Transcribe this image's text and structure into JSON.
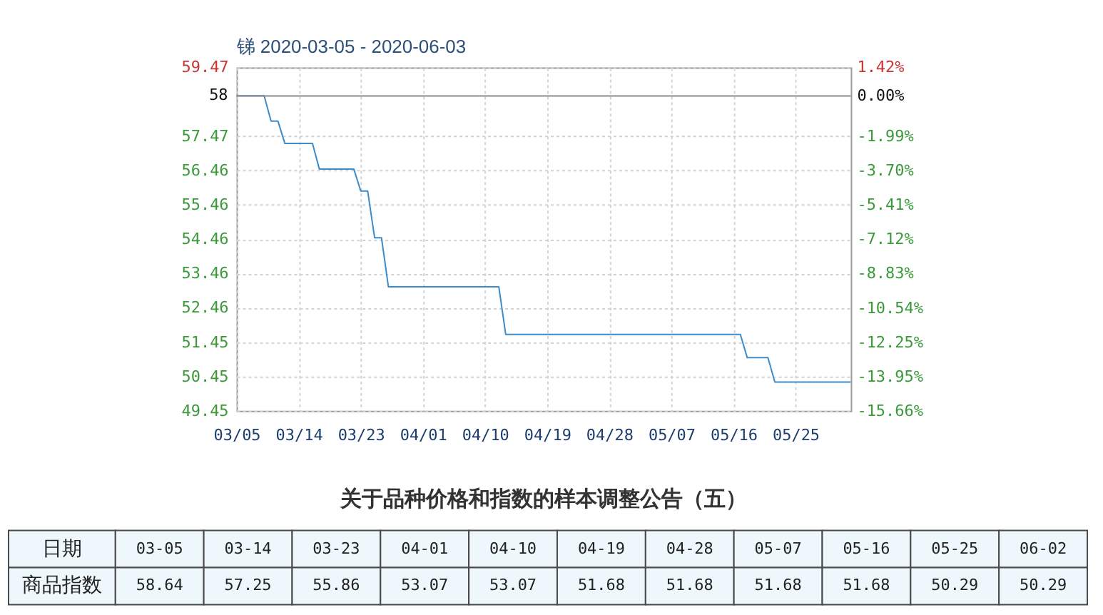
{
  "chart_data": [
    {
      "type": "line",
      "title": "锑 2020-03-05 - 2020-06-03",
      "x": [
        "2020-03-05",
        "2020-03-09",
        "2020-03-10",
        "2020-03-11",
        "2020-03-12",
        "2020-03-16",
        "2020-03-17",
        "2020-03-22",
        "2020-03-23",
        "2020-03-24",
        "2020-03-25",
        "2020-03-26",
        "2020-03-27",
        "2020-04-12",
        "2020-04-13",
        "2020-05-17",
        "2020-05-18",
        "2020-05-21",
        "2020-05-22",
        "2020-06-02"
      ],
      "series": [
        {
          "color": "#3d8bc9",
          "values": [
            58.64,
            58.64,
            57.9,
            57.9,
            57.25,
            57.25,
            56.5,
            56.5,
            55.86,
            55.86,
            54.5,
            54.5,
            53.07,
            53.07,
            51.68,
            51.68,
            51.0,
            51.0,
            50.29,
            50.29
          ]
        }
      ],
      "xlim": [
        "2020-03-05",
        "2020-06-02"
      ],
      "xticks": [
        {
          "value": "2020-03-05",
          "label": "03/05"
        },
        {
          "value": "2020-03-14",
          "label": "03/14"
        },
        {
          "value": "2020-03-23",
          "label": "03/23"
        },
        {
          "value": "2020-04-01",
          "label": "04/01"
        },
        {
          "value": "2020-04-10",
          "label": "04/10"
        },
        {
          "value": "2020-04-19",
          "label": "04/19"
        },
        {
          "value": "2020-04-28",
          "label": "04/28"
        },
        {
          "value": "2020-05-07",
          "label": "05/07"
        },
        {
          "value": "2020-05-16",
          "label": "05/16"
        },
        {
          "value": "2020-05-25",
          "label": "05/25"
        }
      ],
      "ylim": [
        49.45,
        59.47
      ],
      "yticks": [
        59.47,
        57.47,
        56.46,
        55.46,
        54.46,
        53.46,
        52.46,
        51.45,
        50.45,
        49.45
      ],
      "y2lim": [
        -15.66,
        1.42
      ],
      "y2ticks": [
        {
          "value": 1.42,
          "label": "1.42%"
        },
        {
          "value": 0,
          "label": "0.00%"
        },
        {
          "value": -1.99,
          "label": "-1.99%"
        },
        {
          "value": -3.7,
          "label": "-3.70%"
        },
        {
          "value": -5.41,
          "label": "-5.41%"
        },
        {
          "value": -7.12,
          "label": "-7.12%"
        },
        {
          "value": -8.83,
          "label": "-8.83%"
        },
        {
          "value": -10.54,
          "label": "-10.54%"
        },
        {
          "value": -12.25,
          "label": "-12.25%"
        },
        {
          "value": -13.95,
          "label": "-13.95%"
        },
        {
          "value": -15.66,
          "label": "-15.66%"
        }
      ],
      "ref_lines": [
        {
          "axis": "y2",
          "value": 0,
          "color": "#8c8c8c"
        }
      ],
      "annotations": [
        "58"
      ],
      "grid": true
    },
    {
      "type": "other",
      "title": "关于品种价格和指数的样本调整公告（五）",
      "xlabel": "日期",
      "ylabel": "商品指数",
      "categories": [
        "03-05",
        "03-14",
        "03-23",
        "04-01",
        "04-10",
        "04-19",
        "04-28",
        "05-07",
        "05-16",
        "05-25",
        "06-02"
      ],
      "values": [
        58.64,
        57.25,
        55.86,
        53.07,
        53.07,
        51.68,
        51.68,
        51.68,
        51.68,
        50.29,
        50.29
      ],
      "data_labels": true
    }
  ]
}
